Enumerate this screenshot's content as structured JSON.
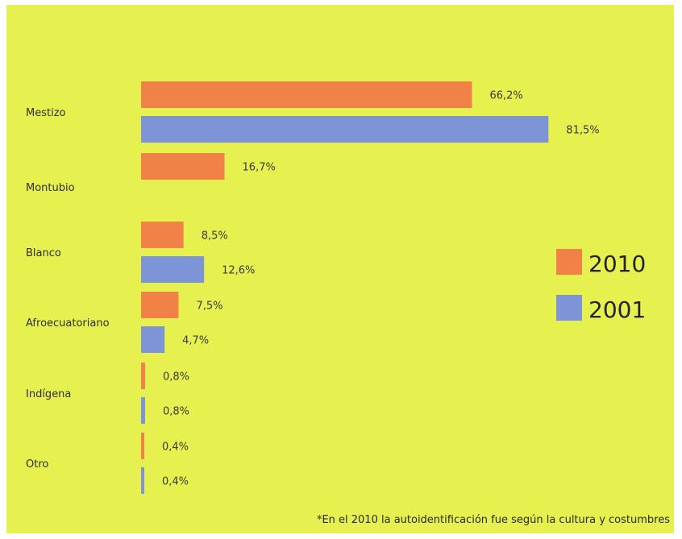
{
  "chart_data": {
    "type": "bar",
    "orientation": "horizontal",
    "categories": [
      "Mestizo",
      "Montubio",
      "Blanco",
      "Afroecuatoriano",
      "Indígena",
      "Otro"
    ],
    "series": [
      {
        "name": "2010",
        "color": "#f08248",
        "values": [
          66.2,
          16.7,
          8.5,
          7.5,
          0.8,
          0.4
        ],
        "labels": [
          "66,2%",
          "16,7%",
          "8,5%",
          "7,5%",
          "0,8%",
          "0,4%"
        ]
      },
      {
        "name": "2001",
        "color": "#7d95d6",
        "values": [
          81.5,
          null,
          12.6,
          4.7,
          0.8,
          0.4
        ],
        "labels": [
          "81,5%",
          null,
          "12,6%",
          "4,7%",
          "0,8%",
          "0,4%"
        ]
      }
    ],
    "grid": false,
    "legend_position": "right",
    "footnote": "*En el 2010 la autoidentificación fue según la cultura y costumbres"
  }
}
